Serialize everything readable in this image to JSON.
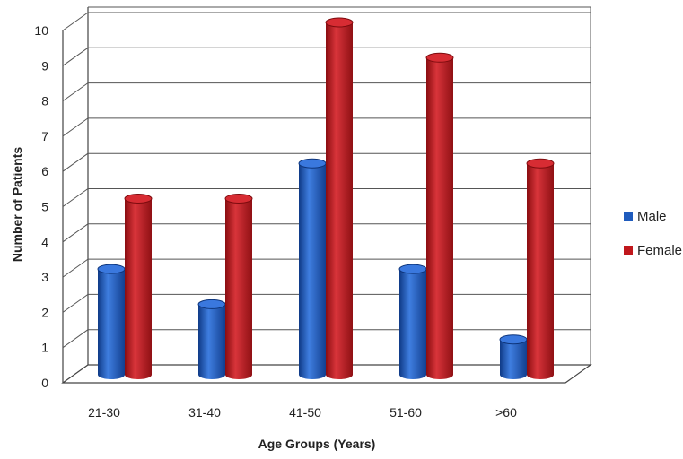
{
  "chart_data": {
    "type": "bar",
    "style": "3d-cylinder",
    "title": "",
    "xlabel": "Age Groups (Years)",
    "ylabel": "Number of Patients",
    "categories": [
      "21-30",
      "31-40",
      "41-50",
      "51-60",
      ">60"
    ],
    "series": [
      {
        "name": "Male",
        "values": [
          3,
          2,
          6,
          3,
          1
        ],
        "color": "#1f5bbd"
      },
      {
        "name": "Female",
        "values": [
          5,
          5,
          10,
          9,
          6
        ],
        "color": "#c0171c"
      }
    ],
    "ylim": [
      0,
      10
    ],
    "yticks": [
      "0",
      "1",
      "2",
      "3",
      "4",
      "5",
      "6",
      "7",
      "8",
      "9",
      "10"
    ],
    "grid": true,
    "legend_position": "right"
  }
}
